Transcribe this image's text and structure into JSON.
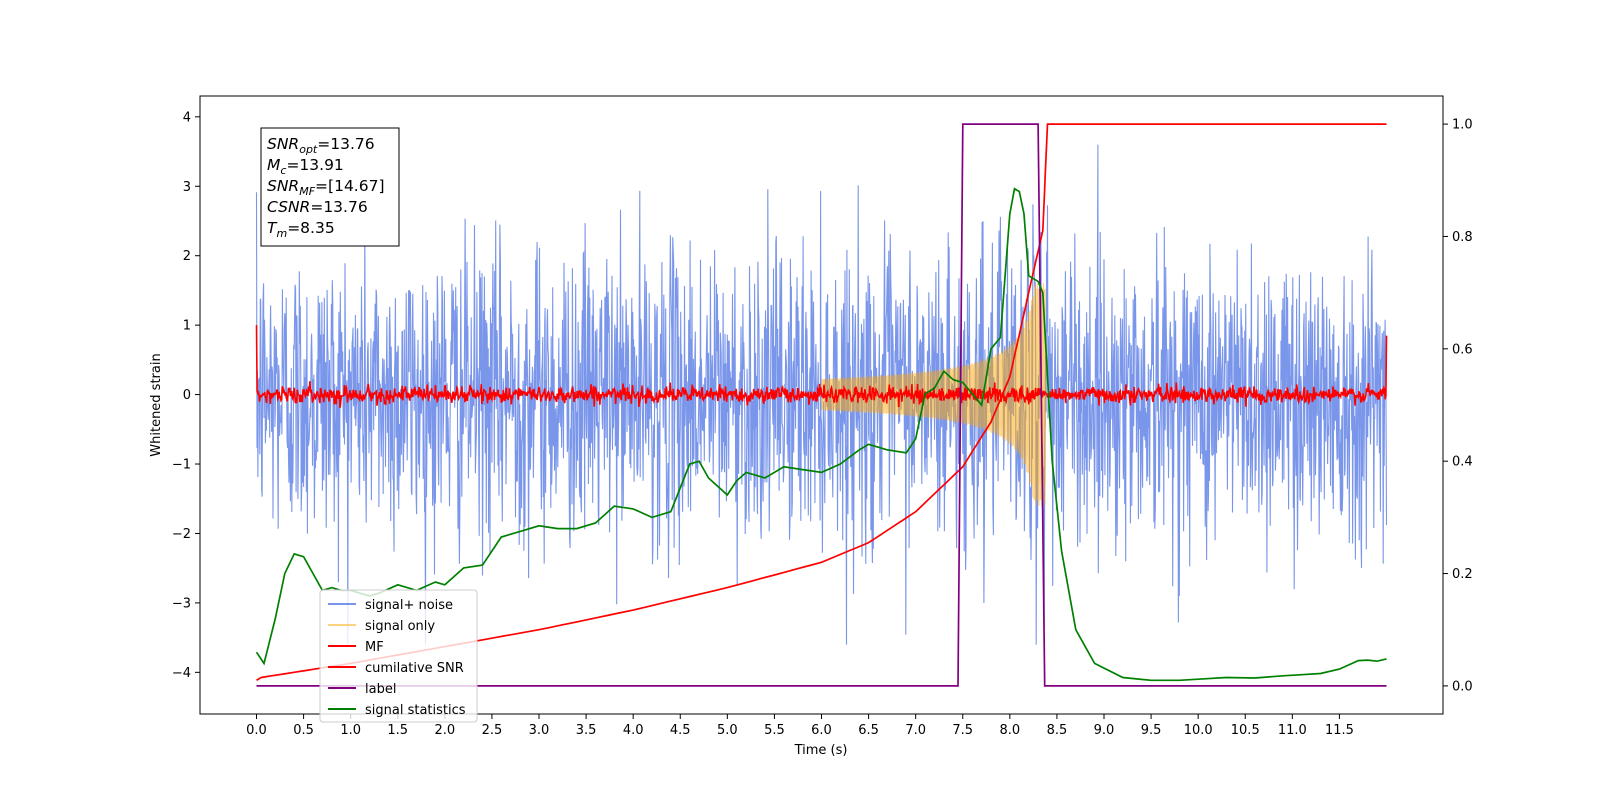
{
  "chart_data": {
    "type": "line",
    "xlabel": "Time (s)",
    "ylabel": "Whitened strain",
    "xlim": [
      -0.6,
      12.6
    ],
    "ylim": [
      -4.6,
      4.3
    ],
    "y2lim": [
      -0.05,
      1.05
    ],
    "x_ticks": [
      "0.0",
      "0.5",
      "1.0",
      "1.5",
      "2.0",
      "2.5",
      "3.0",
      "3.5",
      "4.0",
      "4.5",
      "5.0",
      "5.5",
      "6.0",
      "6.5",
      "7.0",
      "7.5",
      "8.0",
      "8.5",
      "9.0",
      "9.5",
      "10.0",
      "10.5",
      "11.0",
      "11.5"
    ],
    "y_ticks": [
      "4",
      "3",
      "2",
      "1",
      "0",
      "−1",
      "−2",
      "−3",
      "−4"
    ],
    "y2_ticks": [
      "1.0",
      "0.8",
      "0.6",
      "0.4",
      "0.2",
      "0.0"
    ],
    "grid": false,
    "legend_position": "lower-left",
    "info_box": {
      "lines": [
        {
          "sym": "SNR",
          "sub": "opt",
          "val": "=13.76"
        },
        {
          "sym": "M",
          "sub": "c",
          "val": "=13.91"
        },
        {
          "sym": "SNR",
          "sub": "MF",
          "val": "=[14.67]"
        },
        {
          "sym": "CSNR",
          "sub": "",
          "val": "=13.76"
        },
        {
          "sym": "T",
          "sub": "m",
          "val": "=8.35"
        }
      ]
    },
    "series": [
      {
        "name": "signal+ noise",
        "color": "#4169e1",
        "axis": "left",
        "style": "noise",
        "x_range": [
          0,
          12
        ],
        "noise_sigma": 1.0,
        "chirp_peak_time": 8.35,
        "chirp_peak_amplitude": 1.6
      },
      {
        "name": "signal only",
        "color": "#ffa500",
        "axis": "left",
        "style": "chirp",
        "x_range": [
          0,
          12
        ],
        "chirp_start": 6.0,
        "chirp_peak_time": 8.35,
        "chirp_peak_amplitude": 1.6
      },
      {
        "name": "MF",
        "color": "#ff0000",
        "axis": "left",
        "style": "mf",
        "x_range": [
          0,
          12
        ],
        "endpoints": [
          [
            0.0,
            1.0
          ],
          [
            12.0,
            0.85
          ]
        ],
        "noise_sigma": 0.06
      },
      {
        "name": "cumilative SNR",
        "color": "#ff0000",
        "axis": "right",
        "x": [
          0.0,
          0.05,
          1.0,
          2.0,
          3.0,
          4.0,
          5.0,
          6.0,
          6.5,
          7.0,
          7.5,
          7.8,
          8.0,
          8.2,
          8.35,
          8.4,
          12.0
        ],
        "y": [
          0.01,
          0.015,
          0.04,
          0.07,
          0.1,
          0.135,
          0.175,
          0.22,
          0.255,
          0.31,
          0.39,
          0.47,
          0.55,
          0.7,
          0.81,
          1.0,
          1.0
        ]
      },
      {
        "name": "label",
        "color": "#800080",
        "axis": "right",
        "x": [
          0.0,
          7.45,
          7.5,
          8.3,
          8.37,
          12.0
        ],
        "y": [
          0.0,
          0.0,
          1.0,
          1.0,
          0.0,
          0.0
        ]
      },
      {
        "name": "signal statistics",
        "color": "#008000",
        "axis": "right",
        "x": [
          0.0,
          0.08,
          0.2,
          0.3,
          0.4,
          0.5,
          0.6,
          0.7,
          0.8,
          0.9,
          1.0,
          1.1,
          1.2,
          1.3,
          1.5,
          1.7,
          1.9,
          2.0,
          2.2,
          2.4,
          2.6,
          2.8,
          3.0,
          3.2,
          3.4,
          3.6,
          3.8,
          4.0,
          4.2,
          4.4,
          4.6,
          4.7,
          4.8,
          5.0,
          5.1,
          5.2,
          5.4,
          5.6,
          5.8,
          6.0,
          6.2,
          6.4,
          6.5,
          6.7,
          6.9,
          7.0,
          7.1,
          7.2,
          7.3,
          7.4,
          7.5,
          7.6,
          7.7,
          7.8,
          7.9,
          8.0,
          8.05,
          8.1,
          8.15,
          8.2,
          8.3,
          8.35,
          8.45,
          8.55,
          8.7,
          8.9,
          9.2,
          9.5,
          9.8,
          10.0,
          10.3,
          10.6,
          10.9,
          11.1,
          11.3,
          11.5,
          11.7,
          11.8,
          11.9,
          12.0
        ],
        "y": [
          0.06,
          0.04,
          0.12,
          0.2,
          0.235,
          0.23,
          0.2,
          0.17,
          0.175,
          0.17,
          0.17,
          0.165,
          0.16,
          0.165,
          0.18,
          0.17,
          0.185,
          0.18,
          0.21,
          0.215,
          0.265,
          0.275,
          0.285,
          0.28,
          0.28,
          0.29,
          0.32,
          0.315,
          0.3,
          0.31,
          0.395,
          0.4,
          0.37,
          0.34,
          0.365,
          0.38,
          0.37,
          0.39,
          0.385,
          0.38,
          0.395,
          0.42,
          0.43,
          0.42,
          0.415,
          0.44,
          0.52,
          0.53,
          0.56,
          0.545,
          0.54,
          0.52,
          0.5,
          0.6,
          0.62,
          0.84,
          0.885,
          0.88,
          0.84,
          0.73,
          0.72,
          0.7,
          0.4,
          0.24,
          0.1,
          0.04,
          0.015,
          0.01,
          0.01,
          0.012,
          0.015,
          0.014,
          0.018,
          0.02,
          0.022,
          0.03,
          0.045,
          0.046,
          0.044,
          0.048
        ]
      }
    ]
  }
}
